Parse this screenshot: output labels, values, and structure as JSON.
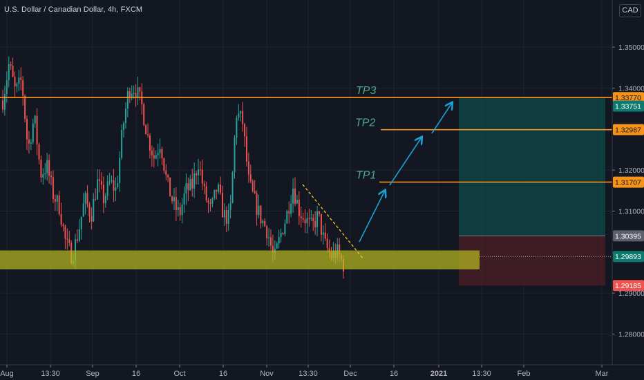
{
  "header": {
    "symbol_title": "U.S. Dollar / Canadian Dollar, 4h, FXCM",
    "currency_button": "CAD"
  },
  "colors": {
    "background": "#131722",
    "up_candle": "#26a69a",
    "down_candle": "#ef5350",
    "level_line": "#f7931a",
    "target_text": "#4fa88c",
    "arrow": "#1ea0d6",
    "support_zone": "#b5b81e",
    "profit_zone": "#0f4b4a",
    "loss_zone": "#4a1e26",
    "trendline": "#f3c623"
  },
  "chart_data": {
    "type": "candlestick",
    "symbol": "USDCAD",
    "timeframe": "4h",
    "ylim": [
      1.2725,
      1.3615
    ],
    "y_ticks": [
      "1.35000",
      "1.34000",
      "1.32000",
      "1.31000",
      "1.29000",
      "1.28000"
    ],
    "x_ticks": [
      "Aug",
      "13:30",
      "Sep",
      "16",
      "Oct",
      "16",
      "Nov",
      "13:30",
      "Dec",
      "16",
      "2021",
      "13:30",
      "Feb",
      "Mar"
    ],
    "price_path_anchors": [
      [
        0,
        1.337
      ],
      [
        1,
        1.346
      ],
      [
        2,
        1.339
      ],
      [
        3,
        1.342
      ],
      [
        4,
        1.325
      ],
      [
        5,
        1.333
      ],
      [
        6,
        1.319
      ],
      [
        7,
        1.321
      ],
      [
        8,
        1.314
      ],
      [
        9,
        1.311
      ],
      [
        10,
        1.302
      ],
      [
        11,
        1.299
      ],
      [
        12,
        1.305
      ],
      [
        13,
        1.313
      ],
      [
        14,
        1.309
      ],
      [
        15,
        1.317
      ],
      [
        16,
        1.313
      ],
      [
        17,
        1.317
      ],
      [
        18,
        1.315
      ],
      [
        19,
        1.33
      ],
      [
        20,
        1.34
      ],
      [
        21,
        1.34
      ],
      [
        22,
        1.336
      ],
      [
        23,
        1.328
      ],
      [
        24,
        1.323
      ],
      [
        25,
        1.327
      ],
      [
        26,
        1.317
      ],
      [
        27,
        1.312
      ],
      [
        28,
        1.309
      ],
      [
        29,
        1.315
      ],
      [
        30,
        1.316
      ],
      [
        31,
        1.322
      ],
      [
        32,
        1.314
      ],
      [
        33,
        1.31
      ],
      [
        34,
        1.316
      ],
      [
        35,
        1.309
      ],
      [
        36,
        1.308
      ],
      [
        37,
        1.334
      ],
      [
        38,
        1.332
      ],
      [
        39,
        1.317
      ],
      [
        40,
        1.312
      ],
      [
        41,
        1.308
      ],
      [
        42,
        1.305
      ],
      [
        43,
        1.298
      ],
      [
        44,
        1.304
      ],
      [
        45,
        1.309
      ],
      [
        46,
        1.316
      ],
      [
        47,
        1.31
      ],
      [
        48,
        1.308
      ],
      [
        49,
        1.306
      ],
      [
        50,
        1.309
      ],
      [
        51,
        1.302
      ],
      [
        52,
        1.299
      ],
      [
        53,
        1.3
      ],
      [
        54,
        1.297
      ]
    ],
    "price_levels": [
      {
        "label": "1.33770",
        "value": 1.3377,
        "style": "orange"
      },
      {
        "label": "1.33751",
        "value": 1.3356,
        "style": "teal"
      },
      {
        "label": "1.32987",
        "value": 1.32987,
        "style": "orange"
      },
      {
        "label": "1.31707",
        "value": 1.31707,
        "style": "orange"
      },
      {
        "label": "1.30395",
        "value": 1.30395,
        "style": "gray"
      },
      {
        "label": "1.29893",
        "value": 1.29893,
        "style": "teal"
      },
      {
        "label": "1.29185",
        "value": 1.29185,
        "style": "red"
      }
    ],
    "targets": [
      {
        "label": "TP1",
        "value": 1.31707
      },
      {
        "label": "TP2",
        "value": 1.32987
      },
      {
        "label": "TP3",
        "value": 1.3377
      }
    ],
    "support_zone": {
      "top": 1.3004,
      "bottom": 1.2958
    },
    "position": {
      "entry": 1.30395,
      "target": 1.3377,
      "stop": 1.29185
    },
    "trendline": {
      "from": 1.3165,
      "to": 1.2985
    }
  }
}
